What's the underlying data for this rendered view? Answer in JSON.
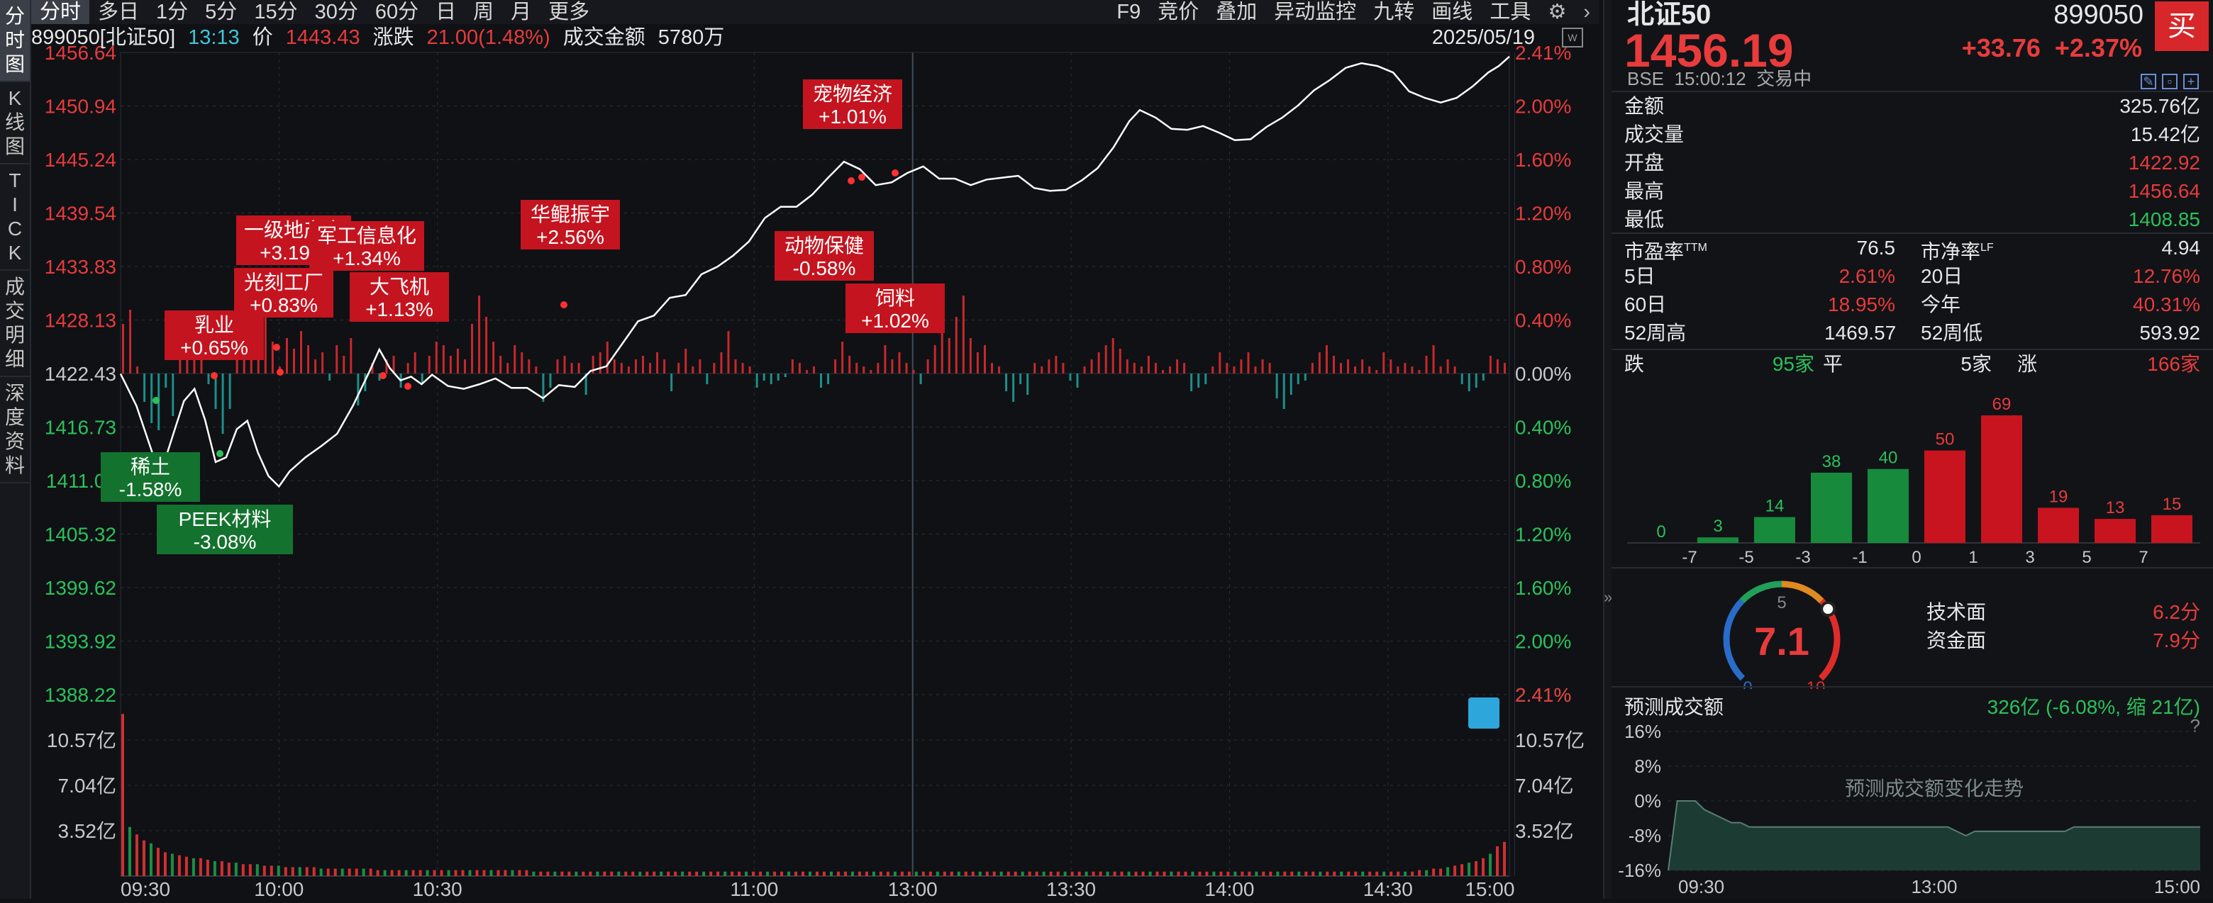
{
  "left_tabs": [
    "分时图",
    "K线图",
    "TICK",
    "成交明细",
    "深度资料"
  ],
  "toolbar_left": [
    "分时",
    "多日",
    "1分",
    "5分",
    "15分",
    "30分",
    "60分",
    "日",
    "周",
    "月",
    "更多"
  ],
  "toolbar_right": [
    "F9",
    "竞价",
    "叠加",
    "异动监控",
    "九转",
    "画线",
    "工具"
  ],
  "info": {
    "code": "899050[北证50]",
    "time": "13:13",
    "price_label": "价",
    "price": "1443.43",
    "change_label": "涨跌",
    "change": "21.00(1.48%)",
    "amount_label": "成交金额",
    "amount": "5780万",
    "date": "2025/05/19"
  },
  "colors": {
    "up": "#e83b3b",
    "down": "#2bc15a",
    "line": "#ffffff",
    "bar_up": "#c8282b",
    "bar_down": "#1d8f8a",
    "vol_bar": "#d22f31",
    "label_red_bg": "#c4141f",
    "label_green_bg": "#14722f",
    "grid": "#2b2f37"
  },
  "chart_data": {
    "type": "line",
    "price_axis": [
      "1456.64",
      "1450.94",
      "1445.24",
      "1439.54",
      "1433.83",
      "1428.13",
      "1422.43",
      "1416.73",
      "1411.03",
      "1405.32",
      "1399.62",
      "1393.92",
      "1388.22"
    ],
    "pct_axis": [
      "2.41%",
      "2.00%",
      "1.60%",
      "1.20%",
      "0.80%",
      "0.40%",
      "0.00%",
      "0.40%",
      "0.80%",
      "1.20%",
      "1.60%",
      "2.00%",
      "2.41%"
    ],
    "volume_axis": [
      "10.57亿",
      "7.04亿",
      "3.52亿"
    ],
    "volume_axis_right": [
      "2.41%",
      "10.57亿",
      "7.04亿",
      "3.52亿"
    ],
    "x_labels": [
      "09:30",
      "10:00",
      "10:30",
      "11:00",
      "13:00",
      "13:30",
      "14:00",
      "14:30",
      "15:00"
    ],
    "ylim": [
      1388.22,
      1456.64
    ],
    "price_series": [
      [
        0,
        1422.4
      ],
      [
        3,
        1419
      ],
      [
        6,
        1414
      ],
      [
        8,
        1412.5
      ],
      [
        10,
        1416
      ],
      [
        12,
        1419.5
      ],
      [
        14,
        1420.8
      ],
      [
        16,
        1417.5
      ],
      [
        18,
        1413
      ],
      [
        20,
        1413.5
      ],
      [
        22,
        1416.5
      ],
      [
        24,
        1417.4
      ],
      [
        26,
        1414
      ],
      [
        28,
        1411.5
      ],
      [
        30,
        1410.4
      ],
      [
        32,
        1412
      ],
      [
        35,
        1413.5
      ],
      [
        38,
        1414.7
      ],
      [
        41,
        1416
      ],
      [
        44,
        1419
      ],
      [
        47,
        1422.5
      ],
      [
        49,
        1425
      ],
      [
        51,
        1423
      ],
      [
        53,
        1421.7
      ],
      [
        55,
        1422.1
      ],
      [
        57,
        1421.3
      ],
      [
        59,
        1422.3
      ],
      [
        62,
        1421.1
      ],
      [
        65,
        1420.8
      ],
      [
        68,
        1421.3
      ],
      [
        71,
        1421.9
      ],
      [
        74,
        1420.9
      ],
      [
        77,
        1420.9
      ],
      [
        80,
        1419.8
      ],
      [
        83,
        1421.2
      ],
      [
        86,
        1421
      ],
      [
        89,
        1422.7
      ],
      [
        92,
        1423.2
      ],
      [
        95,
        1425.6
      ],
      [
        98,
        1428
      ],
      [
        101,
        1428.6
      ],
      [
        104,
        1430.5
      ],
      [
        107,
        1430.8
      ],
      [
        110,
        1433
      ],
      [
        113,
        1433.8
      ],
      [
        116,
        1435
      ],
      [
        119,
        1436.5
      ],
      [
        122,
        1439
      ],
      [
        125,
        1440.2
      ],
      [
        128,
        1440.2
      ],
      [
        131,
        1441.5
      ],
      [
        134,
        1443.3
      ],
      [
        137,
        1445
      ],
      [
        140,
        1444.2
      ],
      [
        143,
        1442.5
      ],
      [
        146,
        1442.8
      ],
      [
        149,
        1443.8
      ],
      [
        152,
        1444.5
      ],
      [
        155,
        1443.2
      ],
      [
        158,
        1443.2
      ],
      [
        161,
        1442.5
      ],
      [
        164,
        1443.1
      ],
      [
        167,
        1443.3
      ],
      [
        170,
        1443.5
      ],
      [
        173,
        1442.2
      ],
      [
        176,
        1441.9
      ],
      [
        179,
        1442
      ],
      [
        182,
        1443
      ],
      [
        185,
        1444.3
      ],
      [
        188,
        1446.5
      ],
      [
        191,
        1449.3
      ],
      [
        193,
        1450.5
      ],
      [
        196,
        1449.7
      ],
      [
        199,
        1448.5
      ],
      [
        202,
        1448.4
      ],
      [
        205,
        1448.8
      ],
      [
        208,
        1448.1
      ],
      [
        211,
        1447.3
      ],
      [
        214,
        1447.4
      ],
      [
        217,
        1448.7
      ],
      [
        220,
        1449.7
      ],
      [
        223,
        1451
      ],
      [
        226,
        1452.6
      ],
      [
        229,
        1453.7
      ],
      [
        232,
        1455
      ],
      [
        235,
        1455.5
      ],
      [
        238,
        1455.2
      ],
      [
        241,
        1454.5
      ],
      [
        244,
        1452.5
      ],
      [
        247,
        1451.8
      ],
      [
        250,
        1451.3
      ],
      [
        253,
        1451.8
      ],
      [
        256,
        1453
      ],
      [
        259,
        1454.5
      ],
      [
        261,
        1455.2
      ],
      [
        263,
        1456.2
      ]
    ],
    "diff_bars": [
      1.4,
      1.8,
      0.2,
      -0.8,
      -1.4,
      -1.6,
      -0.4,
      -1.2,
      0.5,
      1.2,
      1.0,
      0.4,
      -0.3,
      -1.0,
      -1.7,
      -1.0,
      0.6,
      1.3,
      1.5,
      0.8,
      1.6,
      0.9,
      0.2,
      1.0,
      0.7,
      1.2,
      0.8,
      0.4,
      0.6,
      -0.2,
      0.8,
      0.5,
      1.0,
      -0.9,
      -0.5,
      0.3,
      -0.2,
      0.4,
      0.5,
      -0.4,
      0.3,
      0.6,
      -0.3,
      0.5,
      0.9,
      0.8,
      0.5,
      0.7,
      0.4,
      1.4,
      2.2,
      1.6,
      0.9,
      0.5,
      0.3,
      0.8,
      0.6,
      0.4,
      0.2,
      -0.8,
      -0.4,
      0.4,
      0.5,
      0.3,
      0.3,
      -0.6,
      0.5,
      0.6,
      0.9,
      0.4,
      0.3,
      0.2,
      0.4,
      0.5,
      0.3,
      0.6,
      0.4,
      -0.5,
      0.3,
      0.7,
      0.2,
      0.4,
      -0.3,
      0.3,
      0.6,
      1.2,
      0.4,
      0.3,
      0.2,
      -0.4,
      -0.2,
      -0.3,
      -0.2,
      -0.1,
      0.4,
      0.3,
      0.1,
      0.2,
      -0.4,
      -0.3,
      0.4,
      0.9,
      0.5,
      0.3,
      0.2,
      0.1,
      0.3,
      0.8,
      0.4,
      0.6,
      0.3,
      0.1,
      -0.3,
      0.4,
      0.8,
      1.3,
      1.0,
      1.6,
      2.2,
      1.0,
      0.6,
      0.8,
      0.3,
      0.2,
      -0.5,
      -0.8,
      -0.3,
      -0.6,
      0.3,
      0.2,
      0.4,
      0.5,
      0.3,
      -0.2,
      -0.4,
      0.2,
      0.4,
      0.6,
      0.8,
      1.0,
      0.7,
      0.4,
      0.3,
      0.2,
      0.5,
      0.3,
      0.1,
      0.2,
      0.4,
      0.3,
      -0.5,
      -0.4,
      -0.3,
      0.2,
      0.6,
      0.3,
      0.2,
      0.4,
      0.6,
      0.2,
      0.4,
      0.3,
      -0.7,
      -1.0,
      -0.6,
      -0.3,
      -0.2,
      0.3,
      0.6,
      0.8,
      0.5,
      0.3,
      0.4,
      0.2,
      0.4,
      0.2,
      0.1,
      0.6,
      0.4,
      0.2,
      0.3,
      0.2,
      0.1,
      0.5,
      0.8,
      0.2,
      0.4,
      0.2,
      -0.3,
      -0.5,
      -0.4,
      -0.2,
      0.5,
      0.4,
      0.3
    ],
    "volume_bars": [
      10.9,
      3.3,
      2.8,
      2.4,
      2.2,
      1.9,
      1.6,
      1.5,
      1.4,
      1.3,
      1.2,
      1.2,
      1.1,
      1.0,
      1.0,
      0.9,
      0.9,
      0.8,
      0.8,
      0.8,
      0.7,
      0.7,
      0.7,
      0.6,
      0.6,
      0.6,
      0.6,
      0.6,
      0.5,
      0.5,
      0.5,
      0.5,
      0.5,
      0.5,
      0.5,
      0.5,
      0.4,
      0.4,
      0.4,
      0.4,
      0.4,
      0.4,
      0.4,
      0.4,
      0.4,
      0.4,
      0.4,
      0.4,
      0.4,
      0.4,
      0.4,
      0.4,
      0.4,
      0.4,
      0.4,
      0.4,
      0.4,
      0.4,
      0.3,
      0.3,
      0.3,
      0.3,
      0.3,
      0.3,
      0.3,
      0.3,
      0.3,
      0.3,
      0.3,
      0.3,
      0.3,
      0.3,
      0.3,
      0.3,
      0.3,
      0.3,
      0.3,
      0.3,
      0.3,
      0.3,
      0.3,
      0.3,
      0.3,
      0.3,
      0.3,
      0.3,
      0.3,
      0.3,
      0.3,
      0.3,
      0.3,
      0.3,
      0.3,
      0.3,
      0.3,
      0.3,
      0.3,
      0.3,
      0.3,
      0.3,
      0.3,
      0.3,
      0.3,
      0.3,
      0.3,
      0.3,
      0.3,
      0.3,
      0.3,
      0.3,
      0.3,
      0.3,
      0.3,
      0.3,
      0.3,
      0.3,
      0.3,
      0.3,
      0.3,
      0.3,
      0.3,
      0.3,
      0.3,
      0.3,
      0.3,
      0.3,
      0.3,
      0.3,
      0.3,
      0.3,
      0.3,
      0.3,
      0.3,
      0.3,
      0.3,
      0.3,
      0.3,
      0.3,
      0.3,
      0.3,
      0.3,
      0.3,
      0.3,
      0.3,
      0.3,
      0.3,
      0.3,
      0.3,
      0.3,
      0.3,
      0.3,
      0.3,
      0.3,
      0.3,
      0.3,
      0.3,
      0.3,
      0.3,
      0.3,
      0.3,
      0.3,
      0.3,
      0.3,
      0.3,
      0.3,
      0.3,
      0.3,
      0.3,
      0.3,
      0.3,
      0.3,
      0.3,
      0.3,
      0.3,
      0.3,
      0.3,
      0.3,
      0.3,
      0.3,
      0.3,
      0.3,
      0.3,
      0.3,
      0.4,
      0.4,
      0.5,
      0.5,
      0.6,
      0.7,
      0.8,
      0.9,
      1.0,
      1.2,
      1.5,
      2.0,
      2.3
    ]
  },
  "annotations": [
    {
      "name": "乳业",
      "pct": "+0.65%",
      "type": "up"
    },
    {
      "name": "一级地产商",
      "pct": "+3.19%",
      "type": "up"
    },
    {
      "name": "光刻工厂",
      "pct": "+0.83%",
      "type": "up"
    },
    {
      "name": "军工信息化",
      "pct": "+1.34%",
      "type": "up"
    },
    {
      "name": "大飞机",
      "pct": "+1.13%",
      "type": "up"
    },
    {
      "name": "华鲲振宇",
      "pct": "+2.56%",
      "type": "up"
    },
    {
      "name": "宠物经济",
      "pct": "+1.01%",
      "type": "up"
    },
    {
      "name": "动物保健",
      "pct": "-0.58%",
      "type": "up"
    },
    {
      "name": "饲料",
      "pct": "+1.02%",
      "type": "up"
    },
    {
      "name": "稀土",
      "pct": "-1.58%",
      "type": "down"
    },
    {
      "name": "PEEK材料",
      "pct": "-3.08%",
      "type": "down"
    }
  ],
  "quote": {
    "name": "北证50",
    "code": "899050",
    "price": "1456.19",
    "change": "+33.76",
    "change_pct": "+2.37%",
    "exchange": "BSE",
    "time": "15:00:12",
    "status": "交易中",
    "buy_label": "买"
  },
  "stats": [
    {
      "label": "金额",
      "value": "325.76亿",
      "color": "white"
    },
    {
      "label": "成交量",
      "value": "15.42亿",
      "color": "white"
    },
    {
      "label": "开盘",
      "value": "1422.92",
      "color": "red"
    },
    {
      "label": "最高",
      "value": "1456.64",
      "color": "red"
    },
    {
      "label": "最低",
      "value": "1408.85",
      "color": "green"
    }
  ],
  "stats2": [
    {
      "l1": "市盈率",
      "sup1": "TTM",
      "v1": "76.5",
      "c1": "white",
      "l2": "市净率",
      "sup2": "LF",
      "v2": "4.94",
      "c2": "white"
    },
    {
      "l1": "5日",
      "sup1": "",
      "v1": "2.61%",
      "c1": "red",
      "l2": "20日",
      "sup2": "",
      "v2": "12.76%",
      "c2": "red"
    },
    {
      "l1": "60日",
      "sup1": "",
      "v1": "18.95%",
      "c1": "red",
      "l2": "今年",
      "sup2": "",
      "v2": "40.31%",
      "c2": "red"
    },
    {
      "l1": "52周高",
      "sup1": "",
      "v1": "1469.57",
      "c1": "white",
      "l2": "52周低",
      "sup2": "",
      "v2": "593.92",
      "c2": "white"
    }
  ],
  "breadth": {
    "down_label": "跌",
    "down": "95家",
    "flat_label": "平",
    "flat": "5家",
    "up_label": "涨",
    "up": "166家"
  },
  "distribution": {
    "counts": [
      0,
      3,
      14,
      38,
      40,
      50,
      69,
      19,
      13,
      15
    ],
    "colors": [
      "down",
      "down",
      "down",
      "down",
      "down",
      "up",
      "up",
      "up",
      "up",
      "up"
    ],
    "x_labels": [
      "-7",
      "-5",
      "-3",
      "-1",
      "0",
      "1",
      "3",
      "5",
      "7"
    ]
  },
  "score": {
    "value": "7.1",
    "gauge_min": "0",
    "gauge_mid": "5",
    "gauge_max": "10",
    "gauge_value": 7.1,
    "tech_label": "技术面",
    "tech_value": "6.2分",
    "fund_label": "资金面",
    "fund_value": "7.9分"
  },
  "forecast": {
    "title": "预测成交额",
    "value": "326亿 (-6.08%, 缩 21亿)",
    "help": "?",
    "y_labels": [
      "16%",
      "8%",
      "0%",
      "-8%",
      "-16%"
    ],
    "x_labels": [
      "09:30",
      "13:00",
      "15:00"
    ],
    "watermark": "预测成交额变化走势",
    "series": [
      -16,
      0,
      0,
      0,
      -2,
      -3,
      -4,
      -5,
      -5,
      -6,
      -6,
      -6,
      -6,
      -6,
      -6,
      -6,
      -6,
      -6,
      -6,
      -6,
      -6,
      -6,
      -6,
      -6,
      -6,
      -6,
      -6,
      -6,
      -6,
      -6,
      -6,
      -6,
      -7,
      -8,
      -7,
      -7,
      -7,
      -7,
      -7,
      -7,
      -7,
      -7,
      -7,
      -7,
      -7,
      -6,
      -6,
      -6,
      -6,
      -6,
      -6,
      -6,
      -6,
      -6,
      -6,
      -6,
      -6,
      -6,
      -6,
      -6
    ]
  }
}
